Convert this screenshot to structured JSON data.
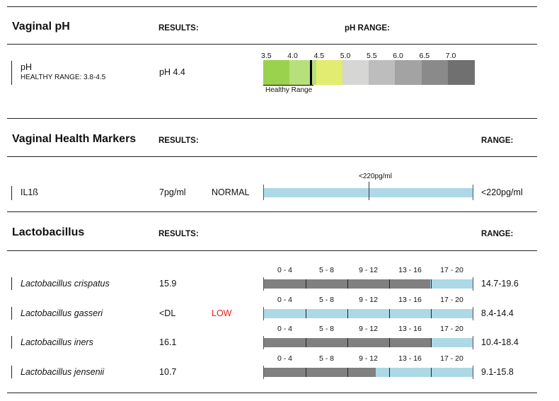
{
  "ph_section": {
    "title": "Vaginal pH",
    "results_head": "RESULTS:",
    "range_head": "pH RANGE:",
    "row": {
      "name": "pH",
      "sub": "HEALTHY RANGE: 3.8-4.5",
      "value": "pH 4.4"
    },
    "scale_labels": [
      "3.5",
      "4.0",
      "4.5",
      "5.0",
      "5.5",
      "6.0",
      "6.5",
      "7.0"
    ],
    "scale_colors": [
      "#9bd24d",
      "#b7e07a",
      "#e2ec6e",
      "#d6d6d4",
      "#bdbdbd",
      "#a3a3a3",
      "#8a8a8a",
      "#707070"
    ],
    "marker_value": 4.4,
    "healthy_label": "Healthy Range"
  },
  "markers_section": {
    "title": "Vaginal Health Markers",
    "results_head": "RESULTS:",
    "range_head": "RANGE:",
    "row": {
      "name": "IL1ß",
      "value": "7pg/ml",
      "flag": "NORMAL",
      "bar_label": "<220pg/ml",
      "range": "<220pg/ml"
    }
  },
  "lacto_section": {
    "title": "Lactobacillus",
    "results_head": "RESULTS:",
    "range_head": "RANGE:",
    "scale_labels": [
      "0 - 4",
      "5 - 8",
      "9 - 12",
      "13 - 16",
      "17 - 20"
    ],
    "scale_max": 20,
    "rows": [
      {
        "name": "Lactobacillus crispatus",
        "value": "15.9",
        "flag": "",
        "fill": 15.9,
        "range": "14.7-19.6"
      },
      {
        "name": "Lactobacillus gasseri",
        "value": "<DL",
        "flag": "LOW",
        "fill": 0,
        "range": "8.4-14.4"
      },
      {
        "name": "Lactobacillus iners",
        "value": "16.1",
        "flag": "",
        "fill": 16.1,
        "range": "10.4-18.4"
      },
      {
        "name": "Lactobacillus jensenii",
        "value": "10.7",
        "flag": "",
        "fill": 10.7,
        "range": "9.1-15.8"
      }
    ]
  },
  "colors": {
    "bar_light": "#add8e6",
    "bar_dark": "#808080",
    "low_flag": "#e0241b"
  }
}
